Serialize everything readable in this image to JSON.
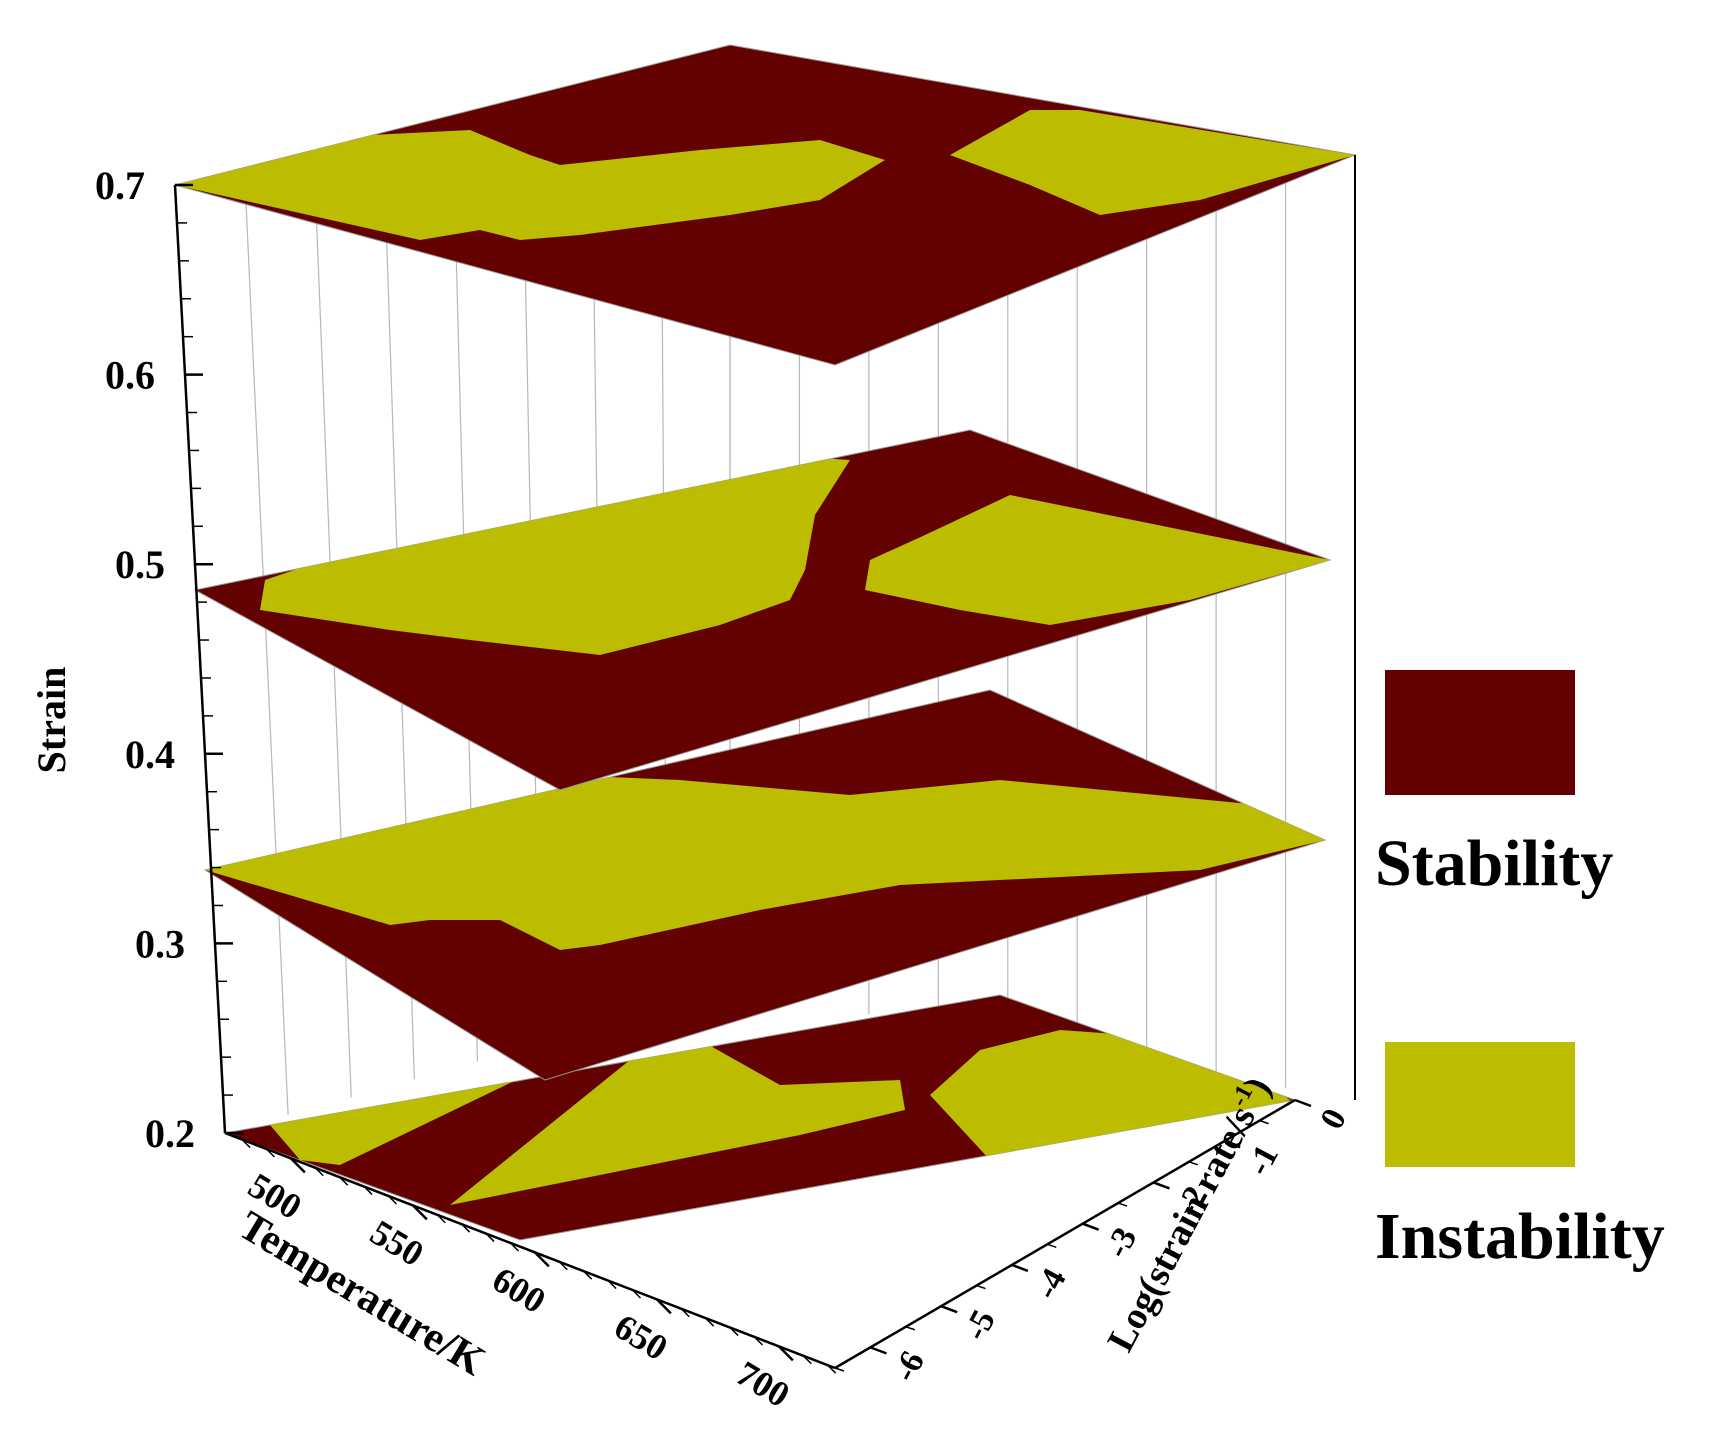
{
  "chart_data": {
    "type": "3d-layered-contour",
    "title": "",
    "z_axis": {
      "label": "Strain",
      "ticks": [
        "0.2",
        "0.3",
        "0.4",
        "0.5",
        "0.6",
        "0.7"
      ],
      "range": [
        0.2,
        0.7
      ]
    },
    "x_axis": {
      "label": "Temperature/K",
      "ticks": [
        "500",
        "550",
        "600",
        "650",
        "700"
      ],
      "range": [
        473,
        723
      ]
    },
    "y_axis": {
      "label": "Log(strain rate/s",
      "label_superscript": "-1",
      "label_close": ")",
      "ticks": [
        "0",
        "-1",
        "-2",
        "-3",
        "-4",
        "-5",
        "-6"
      ],
      "range": [
        -6.5,
        0
      ]
    },
    "layers": [
      {
        "strain": 0.2
      },
      {
        "strain": 0.35
      },
      {
        "strain": 0.5
      },
      {
        "strain": 0.7
      }
    ],
    "series": [
      {
        "name": "Stability",
        "color": "#630000"
      },
      {
        "name": "Instability",
        "color": "#bcbc00"
      }
    ],
    "grid": true,
    "legend_position": "right"
  }
}
